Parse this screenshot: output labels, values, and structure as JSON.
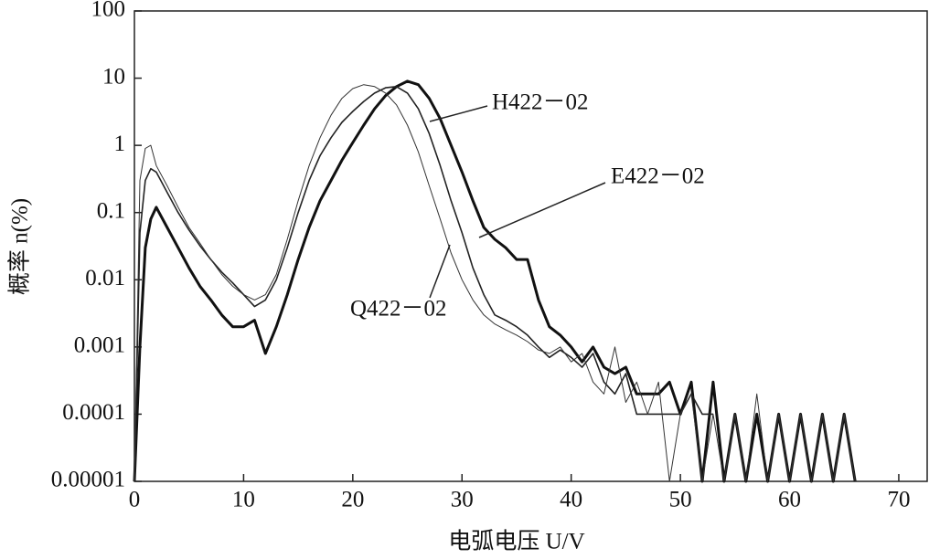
{
  "chart_data": {
    "type": "line",
    "x_label": "电弧电压 U/V",
    "y_label": "概率 n(%)",
    "log_y": true,
    "xlim": [
      0,
      72.6
    ],
    "xticks": [
      0,
      10,
      20,
      30,
      40,
      50,
      60,
      70
    ],
    "ylim": [
      1e-05,
      100
    ],
    "yticks": [
      100,
      10,
      1,
      0.1,
      0.01,
      0.001,
      0.0001,
      1e-05
    ],
    "x": [
      0,
      0.5,
      1,
      1.5,
      2,
      3,
      4,
      5,
      6,
      7,
      8,
      9,
      10,
      11,
      12,
      13,
      14,
      15,
      16,
      17,
      18,
      19,
      20,
      21,
      22,
      23,
      24,
      25,
      26,
      27,
      28,
      29,
      30,
      31,
      32,
      33,
      34,
      35,
      36,
      37,
      38,
      39,
      40,
      41,
      42,
      43,
      44,
      45,
      46,
      47,
      48,
      49,
      50,
      51,
      52,
      53,
      54,
      55,
      56,
      57,
      58,
      59,
      60,
      61,
      62,
      63,
      64,
      65,
      66
    ],
    "series": [
      {
        "name": "H422－02",
        "color": "#111111",
        "line_width": 3,
        "values": [
          1e-05,
          0.001,
          0.03,
          0.08,
          0.12,
          0.06,
          0.03,
          0.015,
          0.008,
          0.005,
          0.003,
          0.002,
          0.002,
          0.0025,
          0.0008,
          0.002,
          0.006,
          0.02,
          0.06,
          0.15,
          0.3,
          0.6,
          1.1,
          2,
          3.5,
          5.5,
          7.5,
          9,
          8,
          5,
          2.5,
          1,
          0.4,
          0.15,
          0.06,
          0.04,
          0.03,
          0.02,
          0.02,
          0.005,
          0.002,
          0.0015,
          0.001,
          0.0006,
          0.001,
          0.0005,
          0.0004,
          0.0005,
          0.0002,
          0.0002,
          0.0002,
          0.0003,
          0.0001,
          0.0003,
          1e-05,
          0.0003,
          1e-05,
          0.0001,
          1e-05,
          0.0001,
          1e-05,
          0.0001,
          1e-05,
          0.0001,
          1e-05,
          0.0001,
          1e-05,
          0.0001,
          1e-05
        ]
      },
      {
        "name": "E422－02",
        "color": "#222222",
        "line_width": 1.6,
        "values": [
          1e-05,
          0.05,
          0.3,
          0.45,
          0.4,
          0.2,
          0.1,
          0.055,
          0.032,
          0.02,
          0.013,
          0.009,
          0.006,
          0.004,
          0.005,
          0.01,
          0.03,
          0.1,
          0.3,
          0.7,
          1.3,
          2.2,
          3.2,
          4.5,
          6,
          7.2,
          7.5,
          6,
          3.5,
          1.5,
          0.5,
          0.15,
          0.05,
          0.015,
          0.006,
          0.003,
          0.0025,
          0.002,
          0.0015,
          0.001,
          0.0007,
          0.0009,
          0.0007,
          0.0005,
          0.0008,
          0.0003,
          0.0002,
          0.0004,
          0.0001,
          0.0001,
          0.0001,
          0.0001,
          0.0001,
          0.0002,
          0.0001,
          0.0001,
          null,
          null,
          null,
          null,
          null,
          null,
          null,
          null,
          null,
          null,
          null,
          null,
          null
        ]
      },
      {
        "name": "Q422－02",
        "color": "#333333",
        "line_width": 1,
        "values": [
          1e-05,
          0.3,
          0.9,
          1,
          0.5,
          0.25,
          0.12,
          0.06,
          0.035,
          0.02,
          0.012,
          0.008,
          0.006,
          0.005,
          0.006,
          0.012,
          0.04,
          0.15,
          0.5,
          1.3,
          2.8,
          5,
          7,
          8,
          7.5,
          6,
          4,
          2,
          0.8,
          0.25,
          0.08,
          0.025,
          0.01,
          0.005,
          0.003,
          0.0022,
          0.0018,
          0.0015,
          0.0012,
          0.0009,
          0.0008,
          0.001,
          0.0006,
          0.0008,
          0.0003,
          0.0002,
          0.001,
          0.00015,
          0.0003,
          0.0001,
          0.0003,
          1e-05,
          0.0001,
          0.0002,
          1e-05,
          0.0001,
          1e-05,
          0.0001,
          1e-05,
          0.0002,
          1e-05,
          0.0001,
          1e-05,
          0.0001,
          1e-05,
          0.0001,
          1e-05,
          0.0001,
          1e-05
        ]
      }
    ]
  }
}
